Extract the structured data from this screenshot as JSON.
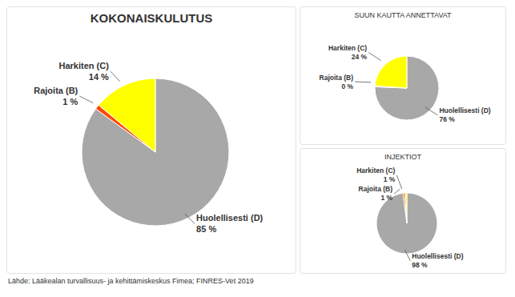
{
  "chart_data": [
    {
      "type": "pie",
      "title": "KOKONAISKULUTUS",
      "categories": [
        "Huolellisesti (D)",
        "Rajoita (B)",
        "Harkiten (C)"
      ],
      "values": [
        85,
        1,
        14
      ],
      "value_labels": [
        "85 %",
        "1 %",
        "14 %"
      ],
      "colors": [
        "#a8a8a8",
        "#ff4500",
        "#ffff00"
      ],
      "data_labels": true,
      "annotations": [
        "Lähde: Lääkealan turvallisuus- ja kehittämiskeskus Fimea; FINRES-Vet 2019"
      ]
    },
    {
      "type": "pie",
      "title": "SUUN KAUTTA ANNETTAVAT",
      "categories": [
        "Huolellisesti (D)",
        "Rajoita (B)",
        "Harkiten (C)"
      ],
      "values": [
        76,
        0.5,
        24
      ],
      "value_labels": [
        "76 %",
        "0 %",
        "24 %"
      ],
      "colors": [
        "#a8a8a8",
        "#ff4500",
        "#ffff00"
      ],
      "data_labels": true
    },
    {
      "type": "pie",
      "title": "INJEKTIOT",
      "categories": [
        "Huolellisesti (D)",
        "Rajoita (B)",
        "Harkiten (C)"
      ],
      "values": [
        98,
        1,
        1
      ],
      "value_labels": [
        "98 %",
        "1 %",
        "1 %"
      ],
      "colors": [
        "#a8a8a8",
        "#ff4500",
        "#ffff00"
      ],
      "data_labels": true
    }
  ]
}
